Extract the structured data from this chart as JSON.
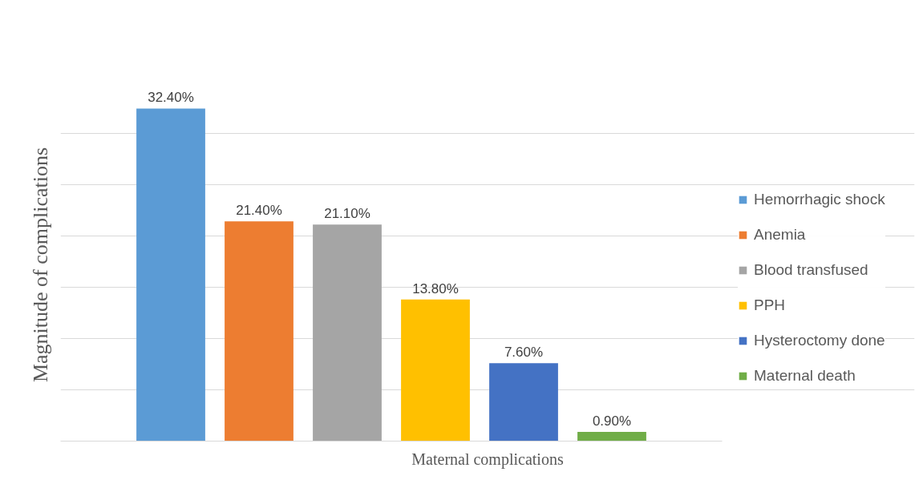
{
  "chart_data": {
    "type": "bar",
    "xlabel": "Maternal complications",
    "ylabel": "Magnitude of complications",
    "categories": [
      null
    ],
    "series": [
      {
        "name": "Hemorrhagic shock",
        "color": "#5b9bd5",
        "values": [
          32.4
        ],
        "value_labels": [
          "32.40%"
        ]
      },
      {
        "name": "Anemia",
        "color": "#ed7d31",
        "values": [
          21.4
        ],
        "value_labels": [
          "21.40%"
        ]
      },
      {
        "name": "Blood transfused",
        "color": "#a5a5a5",
        "values": [
          21.1
        ],
        "value_labels": [
          "21.10%"
        ]
      },
      {
        "name": "PPH",
        "color": "#ffc000",
        "values": [
          13.8
        ],
        "value_labels": [
          "13.80%"
        ]
      },
      {
        "name": "Hysteroctomy done",
        "color": "#4472c4",
        "values": [
          7.6
        ],
        "value_labels": [
          "7.60%"
        ]
      },
      {
        "name": "Maternal death",
        "color": "#70ad47",
        "values": [
          0.9
        ],
        "value_labels": [
          "0.90%"
        ]
      }
    ],
    "grid": "y",
    "legend": "right",
    "tick_labels": false
  }
}
